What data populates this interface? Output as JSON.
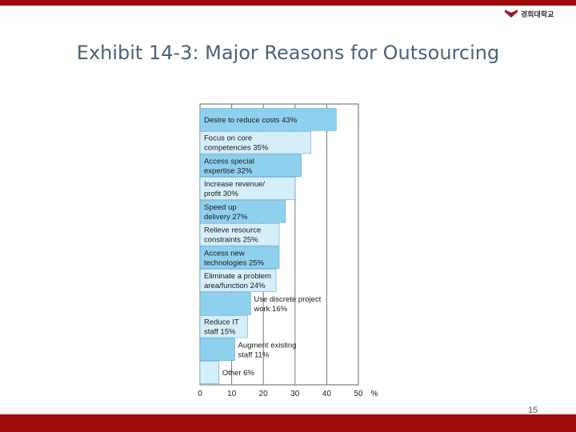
{
  "slide": {
    "title": "Exhibit 14-3: Major Reasons for Outsourcing",
    "page_number": "15",
    "logo_text": "경희대학교"
  },
  "colors": {
    "accent_bar": "#a10a0a",
    "title_text": "#4a6478",
    "bar_dark": "#8fd0ee",
    "bar_light": "#d6eef9"
  },
  "chart_data": {
    "type": "bar",
    "orientation": "horizontal",
    "title": "",
    "xlabel": "",
    "ylabel": "",
    "unit_label": "%",
    "xlim": [
      0,
      50
    ],
    "x_ticks": [
      "0",
      "10",
      "20",
      "30",
      "40",
      "50"
    ],
    "grid": true,
    "categories": [
      "Desire to reduce costs 43%",
      "Focus on core competencies 35%",
      "Access special expertise 32%",
      "Increase revenue/ profit 30%",
      "Speed up delivery 27%",
      "Relieve resource constraints 25%",
      "Access new technologies 25%",
      "Eliminate a problem area/function 24%",
      "Use discrete project work 16%",
      "Reduce IT staff 15%",
      "Augment existing staff 11%",
      "Other 6%"
    ],
    "label_lines": [
      [
        "Desire to reduce costs 43%"
      ],
      [
        "Focus on core",
        "competencies 35%"
      ],
      [
        "Access special",
        "expertise 32%"
      ],
      [
        "Increase revenue/",
        "profit 30%"
      ],
      [
        "Speed up",
        "delivery 27%"
      ],
      [
        "Relieve resource",
        "constraints 25%"
      ],
      [
        "Access new",
        "technologies 25%"
      ],
      [
        "Eliminate a problem",
        "area/function 24%"
      ],
      [
        "Use discrete project",
        "work 16%"
      ],
      [
        "Reduce IT",
        "staff 15%"
      ],
      [
        "Augment existing",
        "staff 11%"
      ],
      [
        "Other 6%"
      ]
    ],
    "values": [
      43,
      35,
      32,
      30,
      27,
      25,
      25,
      24,
      16,
      15,
      11,
      6
    ]
  }
}
